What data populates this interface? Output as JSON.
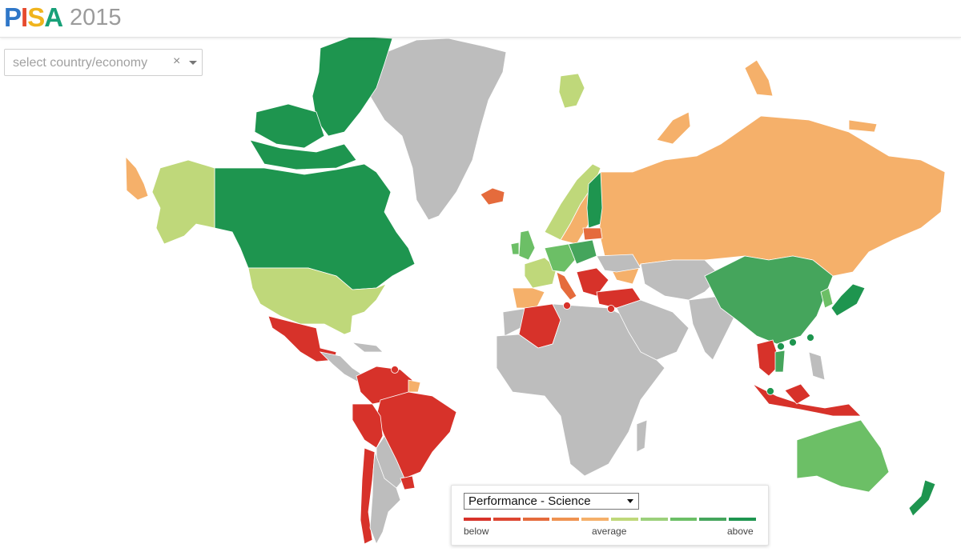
{
  "header": {
    "logo_letters": [
      {
        "char": "P",
        "color": "#2f77c8"
      },
      {
        "char": "I",
        "color": "#e64a2e"
      },
      {
        "char": "S",
        "color": "#f0b41d"
      },
      {
        "char": "A",
        "color": "#18a078"
      }
    ],
    "year": "2015"
  },
  "country_select": {
    "placeholder": "select country/economy",
    "clear_label": "×"
  },
  "legend": {
    "metric_label": "Performance - Science",
    "scale_colors": [
      "#d7322a",
      "#dd4631",
      "#e56b3c",
      "#ef9250",
      "#f5b06a",
      "#bfd87a",
      "#9cd07b",
      "#6cbf66",
      "#45a55c",
      "#1e954f"
    ],
    "label_below": "below",
    "label_average": "average",
    "label_above": "above"
  },
  "map": {
    "colors": {
      "no_data": "#bdbdbd",
      "below": "#d7322a",
      "below_mid": "#e56b3c",
      "near_avg_low": "#f5b06a",
      "near_avg_high": "#bfd87a",
      "above_mid": "#6cbf66",
      "above_high": "#45a55c",
      "above": "#1e954f",
      "border": "#ffffff"
    }
  }
}
